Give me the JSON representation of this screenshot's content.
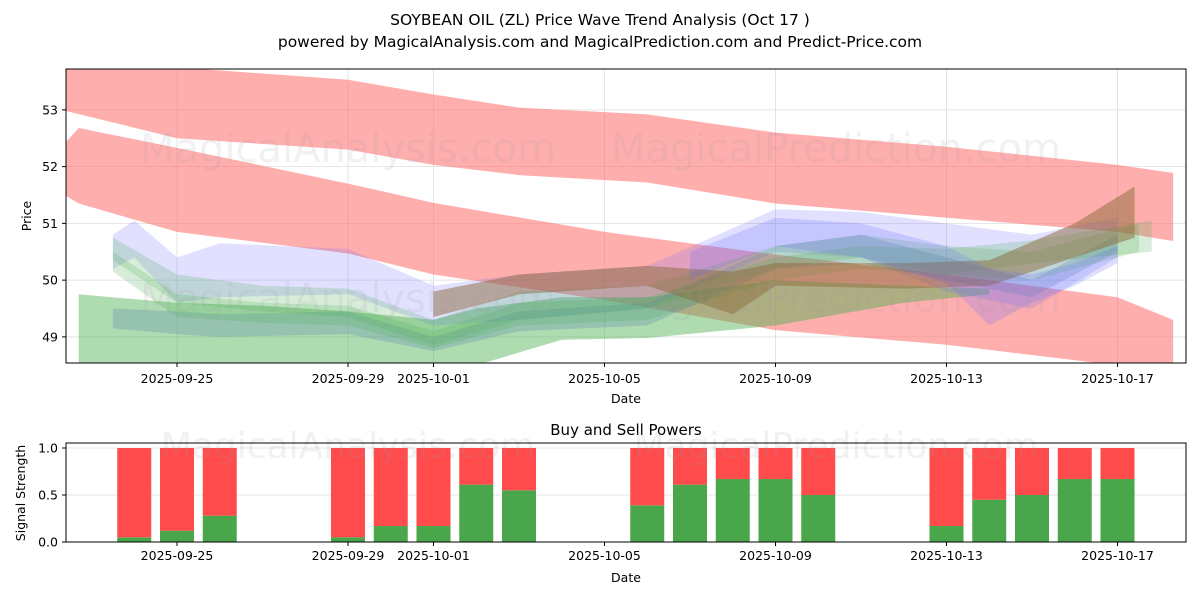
{
  "header": {
    "title": "SOYBEAN OIL (ZL) Price Wave Trend Analysis (Oct 17 )",
    "subtitle": "powered by MagicalAnalysis.com and MagicalPrediction.com and Predict-Price.com"
  },
  "watermarks": [
    "MagicalAnalysis.com",
    "MagicalPrediction.com"
  ],
  "colors": {
    "red_band": "#ff6b6b",
    "green_band": "#4caf50",
    "blue_band": "#6a6aff",
    "brown_band": "#8b6a3a",
    "buy": "#4aa64a",
    "sell": "#ff4b4b",
    "grid": "#dddddd"
  },
  "chart_data": [
    {
      "type": "area",
      "title": "",
      "xlabel": "Date",
      "ylabel": "Price",
      "x_range": [
        "2025-09-22.4",
        "2025-10-18.6"
      ],
      "ylim": [
        48.54,
        53.72
      ],
      "yticks": [
        49,
        50,
        51,
        52,
        53
      ],
      "xticks": [
        "2025-09-25",
        "2025-09-29",
        "2025-10-01",
        "2025-10-05",
        "2025-10-09",
        "2025-10-13",
        "2025-10-17"
      ],
      "grid": true,
      "bands": [
        {
          "name": "upper-resistance-band",
          "color": "red",
          "opacity": 0.55,
          "x": [
            -2.7,
            0,
            4,
            6,
            8,
            11,
            14,
            18,
            22,
            23.3
          ],
          "upper": [
            54.0,
            53.75,
            53.53,
            53.27,
            53.04,
            52.92,
            52.6,
            52.35,
            52.03,
            51.89
          ],
          "lower": [
            53.0,
            52.5,
            52.3,
            52.03,
            51.85,
            51.72,
            51.35,
            51.1,
            50.85,
            50.69
          ]
        },
        {
          "name": "lower-resistance-band",
          "color": "red",
          "opacity": 0.55,
          "x": [
            -2.7,
            -2.3,
            0,
            4,
            6,
            10,
            14,
            18,
            22,
            23.3
          ],
          "upper": [
            52.35,
            52.68,
            52.33,
            51.7,
            51.36,
            50.85,
            50.45,
            50.1,
            49.7,
            49.3
          ],
          "lower": [
            51.53,
            51.35,
            50.85,
            50.47,
            50.1,
            49.65,
            49.12,
            48.86,
            48.5,
            48.2
          ]
        },
        {
          "name": "support-band",
          "color": "green",
          "opacity": 0.45,
          "x": [
            -2.3,
            0,
            2,
            4,
            6,
            7,
            9,
            11,
            14,
            17,
            19
          ],
          "upper": [
            49.75,
            49.6,
            49.55,
            49.45,
            49.3,
            49.5,
            49.7,
            49.7,
            50.0,
            49.9,
            49.85
          ],
          "lower": [
            48.5,
            48.4,
            48.35,
            48.4,
            48.3,
            48.5,
            48.95,
            48.98,
            49.2,
            49.6,
            49.75
          ]
        },
        {
          "name": "wave-band-blue-1",
          "color": "blue",
          "opacity": 0.2,
          "x": [
            -1.5,
            -1.0,
            0,
            1,
            4,
            6,
            8,
            11,
            14,
            16,
            18,
            20,
            22
          ],
          "upper": [
            50.8,
            51.05,
            50.4,
            50.65,
            50.55,
            49.9,
            50.1,
            50.25,
            51.25,
            51.2,
            51.0,
            50.8,
            51.1
          ],
          "lower": [
            50.2,
            50.4,
            49.6,
            49.7,
            49.75,
            49.2,
            49.3,
            49.5,
            50.5,
            50.4,
            49.8,
            49.5,
            50.4
          ]
        },
        {
          "name": "wave-band-blue-2",
          "color": "steelblue",
          "opacity": 0.25,
          "x": [
            -1.5,
            0,
            1,
            4,
            6,
            8,
            11,
            14,
            16,
            18,
            20,
            22
          ],
          "upper": [
            49.5,
            49.45,
            49.4,
            49.45,
            49.0,
            49.45,
            49.6,
            50.6,
            50.8,
            50.4,
            50.0,
            50.8
          ],
          "lower": [
            49.15,
            49.05,
            49.0,
            49.05,
            48.75,
            49.1,
            49.2,
            50.2,
            50.3,
            50.0,
            49.7,
            50.5
          ]
        },
        {
          "name": "wave-band-green-1",
          "color": "green",
          "opacity": 0.22,
          "x": [
            -1.5,
            0,
            2,
            4,
            6,
            8,
            11,
            14,
            16,
            18,
            20,
            22.5
          ],
          "upper": [
            50.75,
            50.1,
            49.9,
            49.85,
            49.3,
            49.8,
            49.9,
            50.6,
            50.8,
            50.6,
            50.5,
            51.0
          ],
          "lower": [
            50.35,
            49.6,
            49.45,
            49.35,
            48.85,
            49.3,
            49.5,
            50.2,
            50.4,
            50.1,
            50.0,
            50.5
          ]
        },
        {
          "name": "wave-band-green-2",
          "color": "green",
          "opacity": 0.22,
          "x": [
            -1.5,
            0,
            2,
            4,
            6,
            8,
            11,
            14,
            16,
            18,
            20,
            22.8
          ],
          "upper": [
            50.5,
            49.75,
            49.6,
            49.55,
            49.1,
            49.6,
            49.7,
            50.4,
            50.6,
            50.55,
            50.7,
            51.05
          ],
          "lower": [
            50.15,
            49.35,
            49.25,
            49.2,
            48.8,
            49.2,
            49.3,
            50.0,
            50.2,
            50.1,
            50.3,
            50.5
          ]
        },
        {
          "name": "wave-band-brown",
          "color": "brown",
          "opacity": 0.5,
          "x": [
            6,
            8,
            11,
            13,
            14,
            17,
            19,
            21,
            22.4
          ],
          "upper": [
            49.8,
            50.1,
            50.25,
            50.15,
            50.3,
            50.3,
            50.35,
            51.0,
            51.65
          ],
          "lower": [
            49.35,
            49.75,
            49.9,
            49.4,
            49.9,
            49.85,
            49.9,
            50.4,
            50.75
          ]
        },
        {
          "name": "wave-band-violet",
          "color": "blue",
          "opacity": 0.22,
          "x": [
            12,
            14,
            16,
            18,
            19,
            20,
            21,
            22
          ],
          "upper": [
            50.5,
            51.1,
            51.0,
            50.6,
            50.2,
            50.1,
            50.3,
            50.6
          ],
          "lower": [
            50.0,
            50.6,
            50.4,
            49.95,
            49.2,
            49.6,
            49.9,
            50.3
          ]
        }
      ]
    },
    {
      "type": "bar",
      "title": "Buy and Sell Powers",
      "xlabel": "Date",
      "ylabel": "Signal Strength",
      "ylim": [
        0,
        1.05
      ],
      "yticks": [
        "0.0",
        "0.5",
        "1.0"
      ],
      "xticks": [
        "2025-09-25",
        "2025-09-29",
        "2025-10-01",
        "2025-10-05",
        "2025-10-09",
        "2025-10-13",
        "2025-10-17"
      ],
      "grid": true,
      "categories": [
        "2025-09-24",
        "2025-09-25",
        "2025-09-26",
        "2025-09-29",
        "2025-09-30",
        "2025-10-01",
        "2025-10-02",
        "2025-10-03",
        "2025-10-06",
        "2025-10-07",
        "2025-10-08",
        "2025-10-09",
        "2025-10-10",
        "2025-10-13",
        "2025-10-14",
        "2025-10-15",
        "2025-10-16",
        "2025-10-17"
      ],
      "day_offsets": [
        -1,
        0,
        1,
        4,
        5,
        6,
        7,
        8,
        11,
        12,
        13,
        14,
        15,
        18,
        19,
        20,
        21,
        22
      ],
      "series": [
        {
          "name": "Buy",
          "values": [
            0.05,
            0.12,
            0.28,
            0.05,
            0.17,
            0.17,
            0.61,
            0.55,
            0.39,
            0.61,
            0.67,
            0.67,
            0.5,
            0.17,
            0.45,
            0.5,
            0.67,
            0.67
          ]
        },
        {
          "name": "Sell",
          "values": [
            0.95,
            0.88,
            0.72,
            0.95,
            0.83,
            0.83,
            0.39,
            0.45,
            0.61,
            0.39,
            0.33,
            0.33,
            0.5,
            0.83,
            0.55,
            0.5,
            0.33,
            0.33
          ]
        }
      ]
    }
  ]
}
